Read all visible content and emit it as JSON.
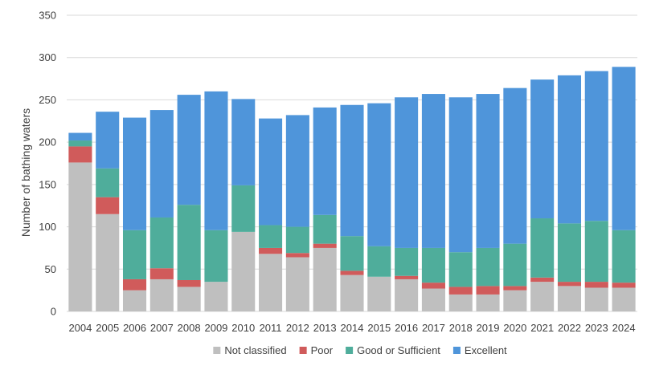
{
  "chart_data": {
    "type": "bar",
    "stacked": true,
    "categories": [
      "2004",
      "2005",
      "2006",
      "2007",
      "2008",
      "2009",
      "2010",
      "2011",
      "2012",
      "2013",
      "2014",
      "2015",
      "2016",
      "2017",
      "2018",
      "2019",
      "2020",
      "2021",
      "2022",
      "2023",
      "2024"
    ],
    "series": [
      {
        "name": "Not classified",
        "color": "#bfbfbf",
        "values": [
          176,
          115,
          25,
          38,
          29,
          35,
          94,
          68,
          64,
          75,
          43,
          41,
          38,
          27,
          20,
          20,
          25,
          35,
          30,
          28,
          28
        ]
      },
      {
        "name": "Poor",
        "color": "#d05b5b",
        "values": [
          19,
          20,
          13,
          13,
          8,
          0,
          0,
          7,
          5,
          5,
          5,
          0,
          4,
          7,
          9,
          10,
          5,
          5,
          5,
          7,
          6
        ]
      },
      {
        "name": "Good or Sufficient",
        "color": "#4fad9b",
        "values": [
          7,
          34,
          58,
          60,
          89,
          61,
          55,
          27,
          31,
          34,
          41,
          36,
          33,
          41,
          41,
          45,
          50,
          70,
          69,
          72,
          62
        ]
      },
      {
        "name": "Excellent",
        "color": "#4f95da",
        "values": [
          9,
          67,
          133,
          127,
          130,
          164,
          102,
          126,
          132,
          127,
          155,
          169,
          178,
          182,
          183,
          182,
          184,
          164,
          175,
          177,
          193
        ]
      }
    ],
    "title": "",
    "xlabel": "",
    "ylabel": "Number of bathing waters",
    "ylim": [
      0,
      350
    ],
    "yticks": [
      "0",
      "50",
      "100",
      "150",
      "200",
      "250",
      "300",
      "350"
    ],
    "grid": true,
    "legend_position": "bottom"
  }
}
